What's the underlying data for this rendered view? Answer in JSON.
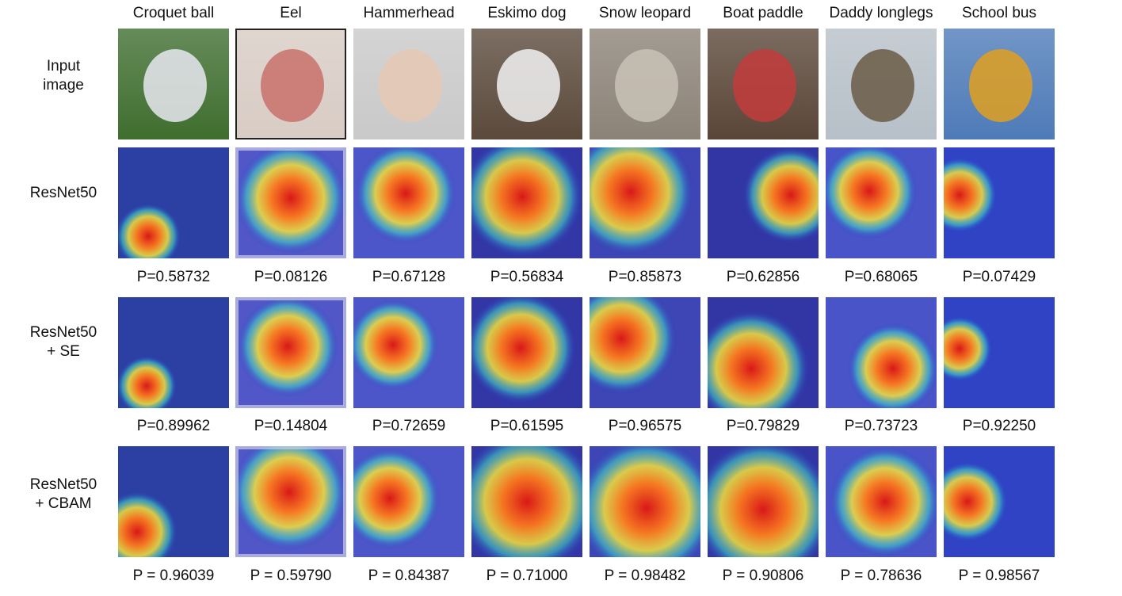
{
  "columns": [
    "Croquet ball",
    "Eel",
    "Hammerhead",
    "Eskimo dog",
    "Snow leopard",
    "Boat paddle",
    "Daddy longlegs",
    "School bus"
  ],
  "rows": [
    {
      "id": "input",
      "label": [
        "Input",
        "image"
      ],
      "kind": "photo"
    },
    {
      "id": "resnet50",
      "label": [
        "ResNet50"
      ],
      "kind": "heatmap",
      "probs": [
        "P=0.58732",
        "P=0.08126",
        "P=0.67128",
        "P=0.56834",
        "P=0.85873",
        "P=0.62856",
        "P=0.68065",
        "P=0.07429"
      ]
    },
    {
      "id": "resnet50-se",
      "label": [
        "ResNet50",
        "+ SE"
      ],
      "kind": "heatmap",
      "probs": [
        "P=0.89962",
        "P=0.14804",
        "P=0.72659",
        "P=0.61595",
        "P=0.96575",
        "P=0.79829",
        "P=0.73723",
        "P=0.92250"
      ]
    },
    {
      "id": "resnet50-cbam",
      "label": [
        "ResNet50",
        "+ CBAM"
      ],
      "kind": "heatmap",
      "probs": [
        "P = 0.96039",
        "P = 0.59790",
        "P = 0.84387",
        "P = 0.71000",
        "P = 0.98482",
        "P = 0.90806",
        "P = 0.78636",
        "P = 0.98567"
      ]
    }
  ],
  "colors": {
    "photo_bg": [
      "#3f6e2f",
      "#d8ccc4",
      "#c9c9c9",
      "#5b4a3c",
      "#8c8378",
      "#5a4638",
      "#b7c0c8",
      "#4e7bb8"
    ],
    "photo_subject": [
      "#e8e8f0",
      "#c9716b",
      "#e6c9b4",
      "#f2f2f2",
      "#c9c2b6",
      "#c23c3c",
      "#6a5a45",
      "#e0a020"
    ],
    "heat_cold": "#2430c8",
    "heat_hot": "#d81818"
  }
}
